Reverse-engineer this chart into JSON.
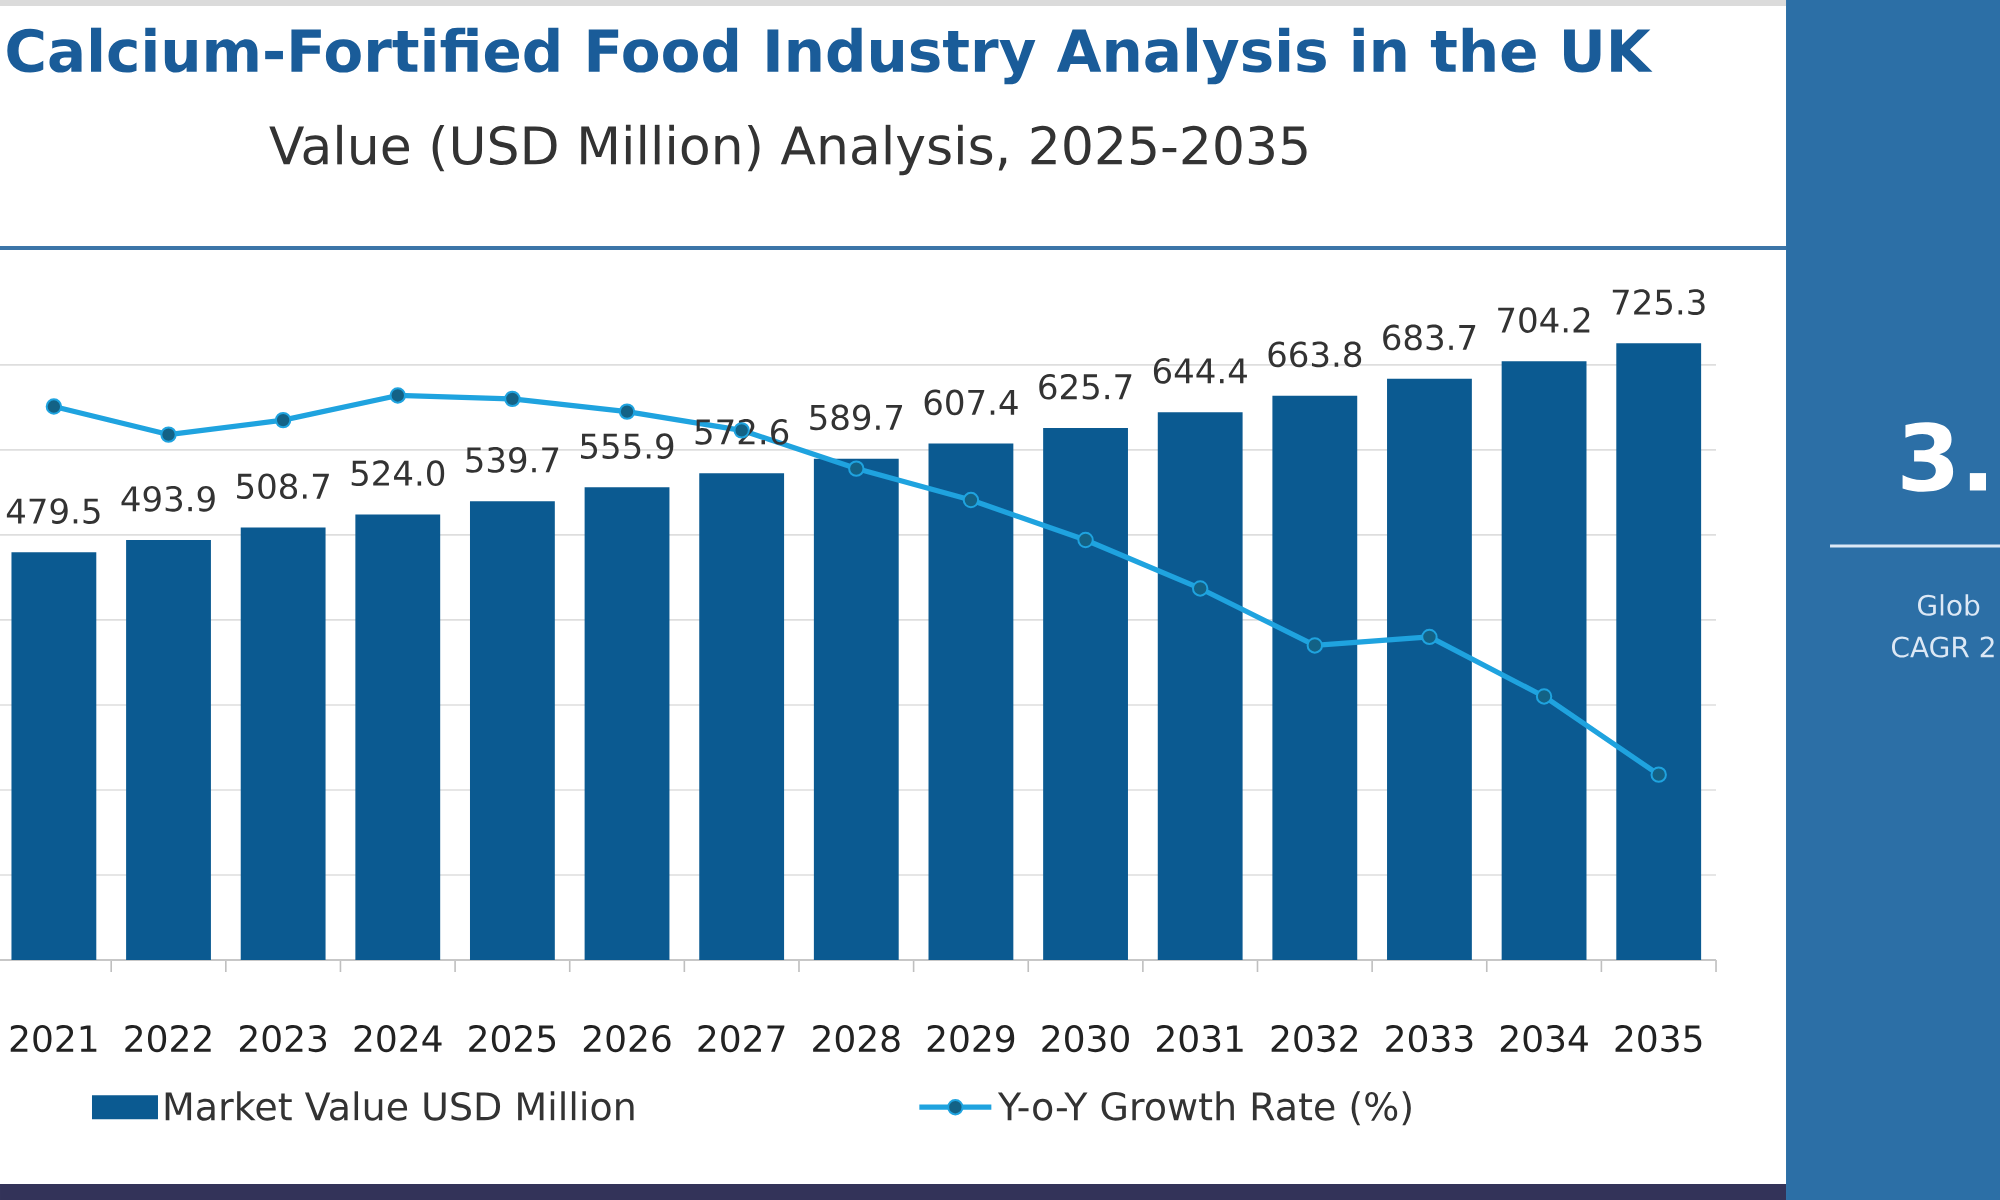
{
  "chart_data": {
    "type": "bar",
    "title": "Calcium-Fortified Food Industry Analysis in the UK",
    "subtitle": "Value (USD Million) Analysis, 2025-2035",
    "categories": [
      "2021",
      "2022",
      "2023",
      "2024",
      "2025",
      "2026",
      "2027",
      "2028",
      "2029",
      "2030",
      "2031",
      "2032",
      "2033",
      "2034",
      "2035"
    ],
    "series": [
      {
        "name": "Market Value USD Million",
        "color": "#0b5a91",
        "values": [
          479.5,
          493.9,
          508.7,
          524.0,
          539.7,
          555.9,
          572.6,
          589.7,
          607.4,
          625.7,
          644.4,
          663.8,
          683.7,
          704.2,
          725.3
        ],
        "value_labels": [
          "479.5",
          "493.9",
          "508.7",
          "524.0",
          "539.7",
          "555.9",
          "572.6",
          "589.7",
          "607.4",
          "625.7",
          "644.4",
          "663.8",
          "683.7",
          "704.2",
          "725.3"
        ]
      },
      {
        "name": "Y-o-Y Growth Rate (%)",
        "type": "line",
        "color": "#1fa3df",
        "marker": "circle",
        "values": [
          651,
          618,
          635,
          664,
          660,
          645,
          623,
          578,
          541,
          494,
          437,
          370,
          380,
          310,
          218
        ]
      }
    ],
    "grid": "y",
    "legend": "bottom",
    "tick_labels": "x",
    "annotations": [
      "3.",
      "Glob",
      "CAGR 2"
    ]
  }
}
